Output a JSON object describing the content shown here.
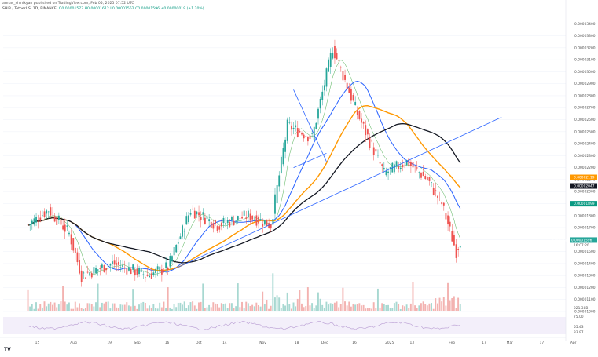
{
  "header": {
    "author_line": "armas_shinikyan published on TradingView.com, Feb 05, 2025 07:52 UTC",
    "symbol": "SHIB / TetherUS, 1D, BINANCE",
    "ohlc": "O0.00001577 H0.00001612 L0.00001562 C0.00001596 +0.00000019 (+1.20%)"
  },
  "colors": {
    "up": "#26a69a",
    "down": "#ef5350",
    "vol_up": "#a7d8d1",
    "vol_down": "#f3b2b0",
    "ma_orange": "#ff9800",
    "ma_black": "#131722",
    "ma_blue": "#2962ff",
    "ma_green": "#4caf50",
    "trendline": "#2962ff",
    "rsi": "#b79bd2"
  },
  "watermark": "TradingView",
  "price_axis": {
    "ticks": [
      "0.00003400",
      "0.00003300",
      "0.00003200",
      "0.00003100",
      "0.00003000",
      "0.00002900",
      "0.00002800",
      "0.00002700",
      "0.00002600",
      "0.00002500",
      "0.00002400",
      "0.00002300",
      "0.00002200",
      "0.00002100",
      "0.00002000",
      "0.00001900",
      "0.00001800",
      "0.00001700",
      "0.00001600",
      "0.00001500",
      "0.00001400",
      "0.00001300",
      "0.00001200",
      "0.00001100",
      "0.00001000"
    ],
    "tags": [
      {
        "text": "0.00002119",
        "price": 2.119e-05,
        "color": "#ff9800"
      },
      {
        "text": "0.00002047",
        "price": 2.047e-05,
        "color": "#131722"
      },
      {
        "text": "0.00001899",
        "price": 1.899e-05,
        "color": "#089981"
      },
      {
        "text": "SHIBUSDT 0.00001596",
        "price": 1.596e-05,
        "color": "#26a69a"
      }
    ],
    "countdown": "16:07:20"
  },
  "rsi_axis": {
    "ticks": [
      "75.00",
      "55.43",
      "33.97"
    ]
  },
  "volume_label": "221.38B",
  "time_axis": [
    "15",
    "Aug",
    "19",
    "Sep",
    "16",
    "Oct",
    "14",
    "Nov",
    "18",
    "Dec",
    "16",
    "2025",
    "13",
    "Feb",
    "17",
    "Mar",
    "17",
    "Apr"
  ],
  "chart_data": {
    "type": "candlestick",
    "symbol": "SHIB / TetherUS",
    "interval": "1D",
    "exchange": "BINANCE",
    "ylim": [
      1e-05,
      3.5e-05
    ],
    "close_path": [
      {
        "date": "2024-07-10",
        "price": 1.72e-05
      },
      {
        "date": "2024-07-20",
        "price": 1.85e-05
      },
      {
        "date": "2024-07-30",
        "price": 1.65e-05
      },
      {
        "date": "2024-08-05",
        "price": 1.3e-05
      },
      {
        "date": "2024-08-20",
        "price": 1.4e-05
      },
      {
        "date": "2024-09-06",
        "price": 1.3e-05
      },
      {
        "date": "2024-09-16",
        "price": 1.37e-05
      },
      {
        "date": "2024-09-27",
        "price": 1.85e-05
      },
      {
        "date": "2024-10-10",
        "price": 1.72e-05
      },
      {
        "date": "2024-10-25",
        "price": 1.8e-05
      },
      {
        "date": "2024-11-05",
        "price": 1.72e-05
      },
      {
        "date": "2024-11-13",
        "price": 2.55e-05
      },
      {
        "date": "2024-11-25",
        "price": 2.45e-05
      },
      {
        "date": "2024-12-05",
        "price": 3.2e-05
      },
      {
        "date": "2024-12-17",
        "price": 2.65e-05
      },
      {
        "date": "2024-12-30",
        "price": 2.15e-05
      },
      {
        "date": "2025-01-10",
        "price": 2.25e-05
      },
      {
        "date": "2025-01-20",
        "price": 2.1e-05
      },
      {
        "date": "2025-01-27",
        "price": 1.9e-05
      },
      {
        "date": "2025-02-03",
        "price": 1.5e-05
      },
      {
        "date": "2025-02-05",
        "price": 1.596e-05
      }
    ],
    "last_price": 1.596e-05,
    "rsi_last": [
      55.43,
      33.97
    ]
  }
}
